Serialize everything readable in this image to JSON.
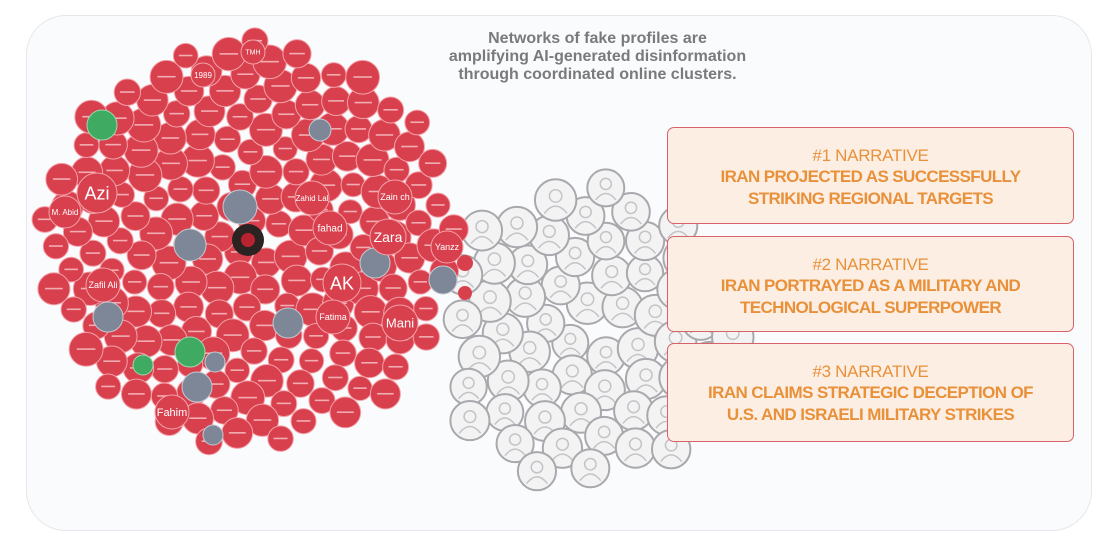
{
  "title": "Networks of fake profiles are amplifying AI-generated disinformation through coordinated online clusters.",
  "title_lines": [
    "Networks of fake profiles are",
    "amplifying AI-generated disinformation",
    "through coordinated online clusters."
  ],
  "narratives": [
    {
      "rank": "#1 NARRATIVE",
      "lines": [
        "IRAN PROJECTED AS SUCCESSFULLY",
        "STRIKING REGIONAL TARGETS"
      ]
    },
    {
      "rank": "#2 NARRATIVE",
      "lines": [
        "IRAN PORTRAYED AS A MILITARY AND",
        "TECHNOLOGICAL SUPERPOWER"
      ]
    },
    {
      "rank": "#3 NARRATIVE",
      "lines": [
        "IRAN CLAIMS STRATEGIC DECEPTION OF",
        "U.S. AND ISRAELI MILITARY STRIKES"
      ]
    }
  ],
  "profile_labels": [
    "Azi",
    "AK",
    "Zara",
    "Mani",
    "Fahim",
    "Fatima",
    "fahad",
    "Yanzz",
    "Zafil Ali",
    "M. Abid",
    "1989",
    "TMH",
    "Zain ch",
    "Zahid Lal"
  ],
  "colors": {
    "profile_red": "#d8404e",
    "profile_grey": "#7d8797",
    "profile_green": "#3faa62",
    "box_fill": "#fdeee3",
    "box_border": "#d8616c",
    "narrative_text": "#e8913a",
    "title_text": "#7a7a7c"
  }
}
